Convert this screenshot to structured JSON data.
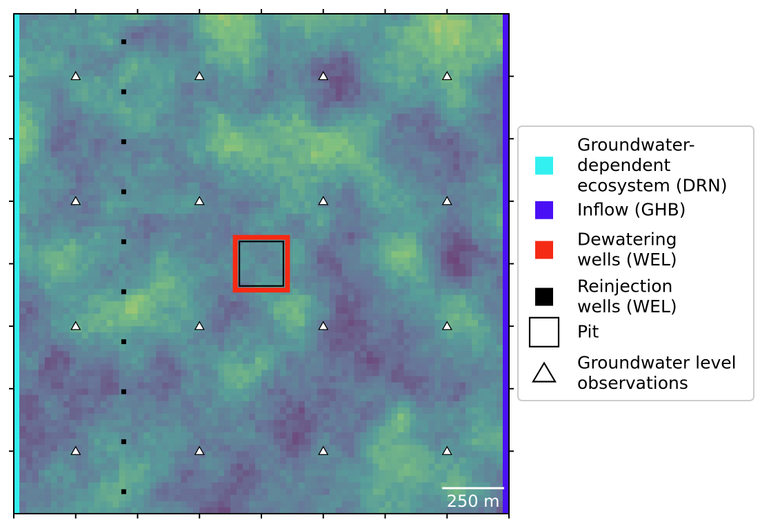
{
  "chart_data": {
    "type": "heatmap",
    "description_free": true,
    "colormap": "viridis",
    "grid": {
      "cols": 80,
      "rows": 80
    },
    "colors": {
      "drn": "#33f0f0",
      "ghb": "#4a10f5",
      "dewatering": "#f52a14",
      "reinjection": "#000000",
      "pit": "#000000",
      "observation_fill": "#ffffff",
      "observation_stroke": "#000000",
      "scalebar": "#ffffff"
    },
    "extent_m": 2000,
    "observation_wells": {
      "x_fractions": [
        0.125,
        0.375,
        0.625,
        0.875
      ],
      "y_fractions": [
        0.125,
        0.375,
        0.625,
        0.875
      ]
    },
    "reinjection_wells": {
      "x_fraction": 0.222,
      "y_fractions": [
        0.056,
        0.156,
        0.256,
        0.356,
        0.456,
        0.556,
        0.656,
        0.756,
        0.856,
        0.956
      ]
    },
    "pit": {
      "x_range": [
        0.45,
        0.55
      ],
      "y_range": [
        0.45,
        0.55
      ]
    },
    "scalebar": {
      "length_m": 250,
      "label": "250 m"
    },
    "legend": {
      "placement": "right",
      "entries": [
        {
          "key": "drn",
          "lines": [
            "Groundwater-",
            "dependent",
            "ecosystem (DRN)"
          ]
        },
        {
          "key": "ghb",
          "lines": [
            "Inflow (GHB)"
          ]
        },
        {
          "key": "dewatering",
          "lines": [
            "Dewatering",
            "wells (WEL)"
          ]
        },
        {
          "key": "reinjection",
          "lines": [
            "Reinjection",
            "wells (WEL)"
          ]
        },
        {
          "key": "pit",
          "lines": [
            "Pit"
          ]
        },
        {
          "key": "observation",
          "lines": [
            "Groundwater level",
            "observations"
          ]
        }
      ]
    }
  }
}
